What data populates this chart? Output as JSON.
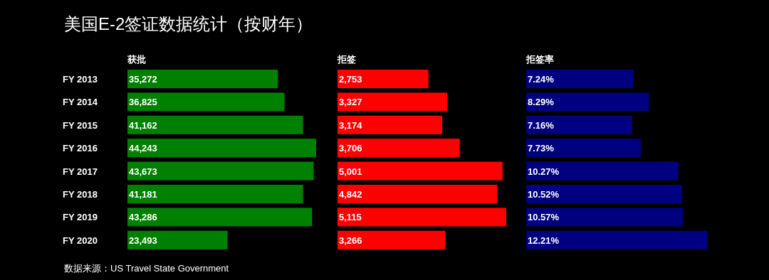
{
  "chart_data": [
    {
      "type": "bar",
      "orientation": "horizontal",
      "title": "美国E-2签证数据统计（按财年）",
      "categories": [
        "FY 2013",
        "FY 2014",
        "FY 2015",
        "FY 2016",
        "FY 2017",
        "FY 2018",
        "FY 2019",
        "FY 2020"
      ],
      "tick_labels": "y",
      "annotations": [
        "数据来源：US Travel State Government"
      ],
      "series": [
        {
          "name": "获批",
          "color": "#008000",
          "values": [
            35272,
            36825,
            41162,
            44243,
            43673,
            41181,
            43286,
            23493
          ],
          "value_labels": [
            "35,272",
            "36,825",
            "41,162",
            "44,243",
            "43,673",
            "41,181",
            "43,286",
            "23,493"
          ]
        }
      ]
    },
    {
      "type": "bar",
      "orientation": "horizontal",
      "categories": [
        null,
        null,
        null,
        null,
        null,
        null,
        null,
        null
      ],
      "tick_labels": false,
      "series": [
        {
          "name": "拒签",
          "color": "#ff0000",
          "values": [
            2753,
            3327,
            3174,
            3706,
            5001,
            4842,
            5115,
            3266
          ],
          "value_labels": [
            "2,753",
            "3,327",
            "3,174",
            "3,706",
            "5,001",
            "4,842",
            "5,115",
            "3,266"
          ]
        }
      ]
    },
    {
      "type": "bar",
      "orientation": "horizontal",
      "categories": [
        null,
        null,
        null,
        null,
        null,
        null,
        null,
        null
      ],
      "tick_labels": false,
      "series": [
        {
          "name": "拒签率",
          "color": "#000080",
          "values": [
            7.24,
            8.29,
            7.16,
            7.73,
            10.27,
            10.52,
            10.57,
            12.21
          ],
          "value_labels": [
            "7.24%",
            "8.29%",
            "7.16%",
            "7.73%",
            "10.27%",
            "10.52%",
            "10.57%",
            "12.21%"
          ]
        }
      ]
    }
  ]
}
